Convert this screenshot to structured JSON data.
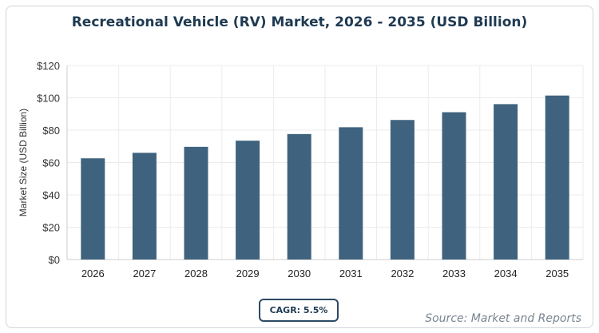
{
  "chart_data": {
    "type": "bar",
    "title": "Recreational Vehicle (RV) Market, 2026 - 2035 (USD Billion)",
    "xlabel": "",
    "ylabel": "Market Size (USD Billion)",
    "categories": [
      "2026",
      "2027",
      "2028",
      "2029",
      "2030",
      "2031",
      "2032",
      "2033",
      "2034",
      "2035"
    ],
    "values": [
      62.6,
      66.0,
      69.7,
      73.5,
      77.6,
      81.8,
      86.3,
      91.1,
      96.1,
      101.4
    ],
    "ylim": [
      0,
      120
    ],
    "yticks": [
      "$0",
      "$20",
      "$40",
      "$60",
      "$80",
      "$100",
      "$120"
    ],
    "grid": true,
    "bar_color": "#3f637e"
  },
  "cagr_label": "CAGR: 5.5%",
  "source": "Source: Market and Reports"
}
